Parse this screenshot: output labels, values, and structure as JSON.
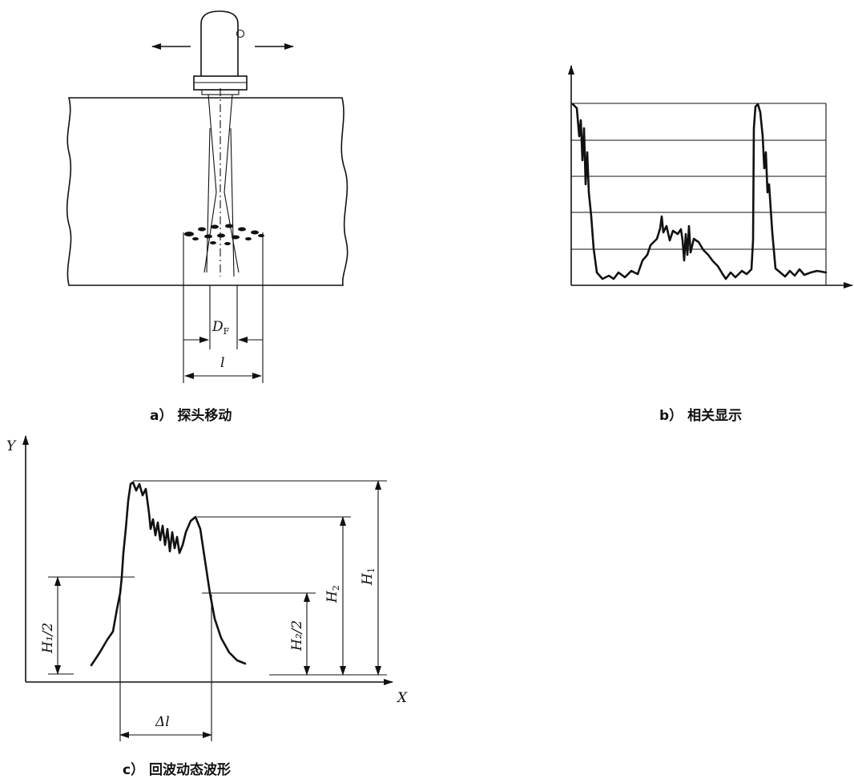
{
  "panel_a": {
    "caption": "a） 探头移动",
    "dim_df": "D",
    "dim_df_sub": "F",
    "dim_l": "l"
  },
  "panel_b": {
    "caption": "b） 相关显示"
  },
  "panel_c": {
    "caption": "c） 回波动态波形",
    "axis_x": "X",
    "axis_y": "Y",
    "label_h1": "H",
    "label_h1_sub": "1",
    "label_h2": "H",
    "label_h2_sub": "2",
    "label_h1_half": "H₁/2",
    "label_h2_half": "H₂/2",
    "label_delta_l": "Δl"
  }
}
